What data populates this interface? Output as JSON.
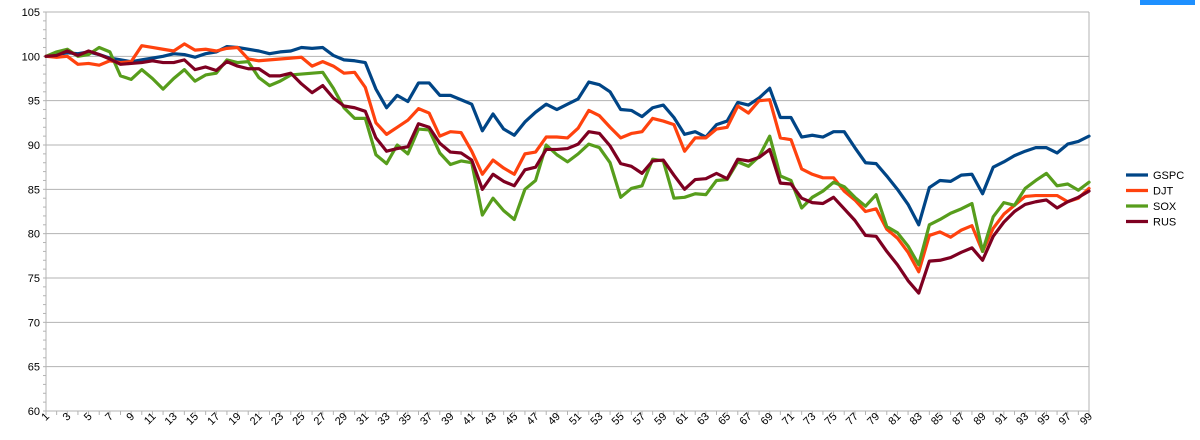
{
  "chart_data": {
    "type": "line",
    "title": "",
    "xlabel": "",
    "ylabel": "",
    "ylim": [
      60,
      105
    ],
    "yticks": [
      60,
      65,
      70,
      75,
      80,
      85,
      90,
      95,
      100,
      105
    ],
    "xlim": [
      1,
      99
    ],
    "xtick_labels": [
      1,
      3,
      5,
      7,
      9,
      11,
      13,
      15,
      17,
      19,
      21,
      23,
      25,
      27,
      29,
      31,
      33,
      35,
      37,
      39,
      41,
      43,
      45,
      47,
      49,
      51,
      53,
      55,
      57,
      59,
      61,
      63,
      65,
      67,
      69,
      71,
      73,
      75,
      77,
      79,
      81,
      83,
      85,
      87,
      89,
      91,
      93,
      95,
      97,
      99
    ],
    "grid": "horizontal",
    "legend_position": "right",
    "series": [
      {
        "name": "GSPC",
        "color": "#004586",
        "values": [
          100,
          100.2,
          100.4,
          100.3,
          100.5,
          100.2,
          99.8,
          99.6,
          99.4,
          99.6,
          99.8,
          100.0,
          100.3,
          100.2,
          99.9,
          100.3,
          100.5,
          101.1,
          101.0,
          100.8,
          100.6,
          100.3,
          100.5,
          100.6,
          101.0,
          100.9,
          101.0,
          100.1,
          99.6,
          99.5,
          99.3,
          96.3,
          94.2,
          95.6,
          94.9,
          97.0,
          97.0,
          95.6,
          95.6,
          95.1,
          94.6,
          91.6,
          93.5,
          91.8,
          91.1,
          92.6,
          93.7,
          94.6,
          94.0,
          94.6,
          95.2,
          97.1,
          96.8,
          96.0,
          94.0,
          93.9,
          93.2,
          94.2,
          94.5,
          93.1,
          91.2,
          91.5,
          90.9,
          92.3,
          92.7,
          94.8,
          94.5,
          95.3,
          96.4,
          93.1,
          93.1,
          90.9,
          91.1,
          90.9,
          91.5,
          91.5,
          89.7,
          88.0,
          87.9,
          86.5,
          85.0,
          83.3,
          81.0,
          85.2,
          86.0,
          85.9,
          86.6,
          86.7,
          84.5,
          87.5,
          88.1,
          88.8,
          89.3,
          89.7,
          89.7,
          89.1,
          90.1,
          90.4,
          91.0
        ]
      },
      {
        "name": "DJT",
        "color": "#ff420e",
        "values": [
          100,
          99.9,
          100.0,
          99.1,
          99.2,
          99.0,
          99.5,
          99.3,
          99.4,
          101.2,
          101.0,
          100.8,
          100.6,
          101.4,
          100.7,
          100.8,
          100.6,
          100.9,
          101.0,
          99.7,
          99.5,
          99.6,
          99.7,
          99.8,
          99.9,
          98.9,
          99.4,
          98.9,
          98.1,
          98.2,
          96.5,
          92.5,
          91.2,
          92.0,
          92.8,
          94.1,
          93.6,
          91.0,
          91.5,
          91.4,
          89.3,
          86.7,
          88.3,
          87.4,
          86.7,
          89.0,
          89.2,
          90.9,
          90.9,
          90.8,
          91.9,
          93.9,
          93.3,
          92.0,
          90.8,
          91.3,
          91.5,
          93.0,
          92.7,
          92.3,
          89.3,
          90.8,
          90.8,
          91.8,
          92.0,
          94.4,
          93.6,
          95.0,
          95.1,
          90.8,
          90.6,
          87.3,
          86.7,
          86.3,
          86.3,
          84.8,
          83.8,
          82.5,
          82.8,
          80.5,
          79.5,
          77.9,
          75.7,
          79.8,
          80.2,
          79.6,
          80.4,
          80.9,
          78.0,
          80.6,
          82.2,
          83.2,
          84.2,
          84.3,
          84.3,
          84.3,
          83.6,
          84.0,
          85.1
        ]
      },
      {
        "name": "SOX",
        "color": "#579d1c",
        "values": [
          100,
          100.5,
          100.8,
          100.0,
          100.2,
          101.0,
          100.5,
          97.8,
          97.4,
          98.5,
          97.5,
          96.3,
          97.5,
          98.5,
          97.2,
          97.9,
          98.1,
          99.6,
          99.3,
          99.4,
          97.6,
          96.7,
          97.2,
          97.9,
          98.0,
          98.1,
          98.2,
          96.4,
          94.2,
          93.0,
          93.0,
          88.9,
          87.9,
          90.0,
          89.0,
          91.8,
          91.7,
          89.1,
          87.8,
          88.2,
          88.0,
          82.1,
          84.0,
          82.6,
          81.6,
          85.0,
          86.0,
          90.0,
          88.9,
          88.1,
          89.0,
          90.1,
          89.7,
          88.0,
          84.1,
          85.1,
          85.4,
          88.4,
          88.2,
          84.0,
          84.1,
          84.5,
          84.4,
          86.0,
          86.1,
          88.1,
          87.6,
          88.7,
          91.0,
          86.5,
          86.0,
          82.9,
          84.1,
          84.8,
          85.8,
          85.3,
          84.1,
          83.1,
          84.4,
          80.8,
          80.1,
          78.6,
          76.5,
          81.0,
          81.6,
          82.3,
          82.8,
          83.4,
          78.0,
          81.9,
          83.5,
          83.2,
          85.1,
          86.0,
          86.8,
          85.4,
          85.6,
          84.9,
          85.8
        ]
      },
      {
        "name": "RUS",
        "color": "#7e0021",
        "values": [
          100,
          100.1,
          100.6,
          100.1,
          100.6,
          100.2,
          99.7,
          99.1,
          99.2,
          99.3,
          99.5,
          99.3,
          99.3,
          99.6,
          98.5,
          98.8,
          98.4,
          99.4,
          98.9,
          98.6,
          98.6,
          97.8,
          97.8,
          98.1,
          96.9,
          95.9,
          96.7,
          95.3,
          94.4,
          94.2,
          93.8,
          90.8,
          89.3,
          89.6,
          89.8,
          92.4,
          92.0,
          90.2,
          89.2,
          89.1,
          88.3,
          85.0,
          86.7,
          85.9,
          85.4,
          87.2,
          87.5,
          89.5,
          89.5,
          89.6,
          90.1,
          91.5,
          91.3,
          89.9,
          87.9,
          87.6,
          86.8,
          88.2,
          88.3,
          86.6,
          85.0,
          86.1,
          86.2,
          86.8,
          86.2,
          88.4,
          88.2,
          88.6,
          89.5,
          85.7,
          85.6,
          84.0,
          83.5,
          83.4,
          84.1,
          82.8,
          81.5,
          79.8,
          79.7,
          78.0,
          76.5,
          74.7,
          73.3,
          76.9,
          77.0,
          77.3,
          77.9,
          78.4,
          77.0,
          79.7,
          81.3,
          82.5,
          83.3,
          83.6,
          83.8,
          82.9,
          83.6,
          84.1,
          84.8
        ]
      }
    ]
  }
}
